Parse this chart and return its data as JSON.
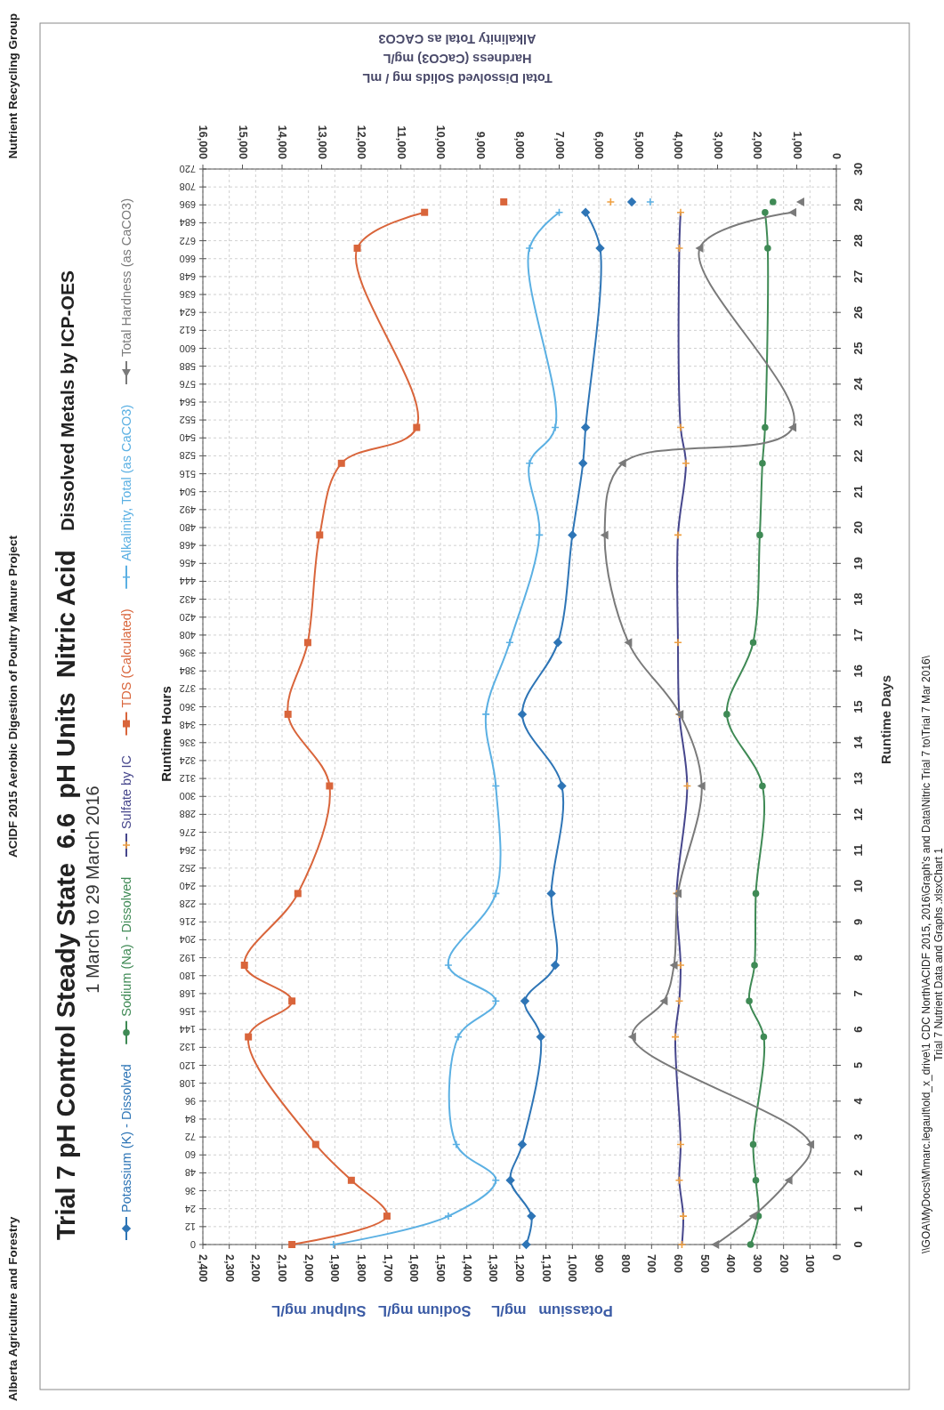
{
  "chart_data": {
    "type": "line",
    "title": "Trial 7 pH Control Steady State  6.6  pH Units  Nitric Acid",
    "subtitle": "1 March to 29 March 2016",
    "xlabel": "Potassium   mg/L     Sodium mg/L   Sulphur mg/L",
    "x2label": "Total Dissolved Solids mg / mL\nHardness (CaCO3) mg/L\nAlkalinity Total as CACO3",
    "ylabel": "Runtime Hours",
    "y2label": "Runtime Days",
    "annotations": [
      "Alberta Agriculture and Forestry",
      "ACIDF 2015 Aerobic Digestion of Poultry Manure Project",
      "Nutrient Recycling Group",
      "Dissolved Metals by ICP-OES",
      "\\\\GOA\\MyDocs\\M\\marc.legault\\old_x_drive\\1 CDC North\\ACIDF 2015, 2016\\Graph's and Data\\Nitric Trial 7 to\\Trial 7 Mar 2016\\",
      "Trial 7 Nutrient Data and Graphs .xlsxChart 1"
    ],
    "xlim": [
      2400,
      0
    ],
    "xticks": [
      0,
      100,
      200,
      300,
      400,
      500,
      600,
      700,
      800,
      900,
      {
        "value": 1000,
        "label": "1,000"
      },
      {
        "value": 1100,
        "label": "1,100"
      },
      {
        "value": 1200,
        "label": "1,200"
      },
      {
        "value": 1300,
        "label": "1,300"
      },
      {
        "value": 1400,
        "label": "1,400"
      },
      {
        "value": 1500,
        "label": "1,500"
      },
      {
        "value": 1600,
        "label": "1,600"
      },
      {
        "value": 1700,
        "label": "1,700"
      },
      {
        "value": 1800,
        "label": "1,800"
      },
      {
        "value": 1900,
        "label": "1,900"
      },
      {
        "value": 2000,
        "label": "2,000"
      },
      {
        "value": 2100,
        "label": "2,100"
      },
      {
        "value": 2200,
        "label": "2,200"
      },
      {
        "value": 2300,
        "label": "2,300"
      },
      {
        "value": 2400,
        "label": "2,400"
      }
    ],
    "x2lim": [
      16000,
      0
    ],
    "x2ticks": [
      0,
      {
        "value": 1000,
        "label": "1,000"
      },
      {
        "value": 2000,
        "label": "2,000"
      },
      {
        "value": 3000,
        "label": "3,000"
      },
      {
        "value": 4000,
        "label": "4,000"
      },
      {
        "value": 5000,
        "label": "5,000"
      },
      {
        "value": 6000,
        "label": "6,000"
      },
      {
        "value": 7000,
        "label": "7,000"
      },
      {
        "value": 8000,
        "label": "8,000"
      },
      {
        "value": 9000,
        "label": "9,000"
      },
      {
        "value": 10000,
        "label": "10,000"
      },
      {
        "value": 11000,
        "label": "11,000"
      },
      {
        "value": 12000,
        "label": "12,000"
      },
      {
        "value": 13000,
        "label": "13,000"
      },
      {
        "value": 14000,
        "label": "14,000"
      },
      {
        "value": 15000,
        "label": "15,000"
      },
      {
        "value": 16000,
        "label": "16,000"
      }
    ],
    "ylim": [
      0,
      720
    ],
    "yticks": [
      0,
      12,
      24,
      36,
      48,
      60,
      72,
      84,
      96,
      108,
      120,
      132,
      144,
      156,
      168,
      180,
      192,
      204,
      216,
      228,
      240,
      252,
      264,
      276,
      288,
      300,
      312,
      324,
      336,
      348,
      360,
      372,
      384,
      396,
      408,
      420,
      432,
      444,
      456,
      468,
      480,
      492,
      504,
      516,
      528,
      540,
      552,
      564,
      576,
      588,
      600,
      612,
      624,
      636,
      648,
      660,
      672,
      684,
      696,
      708,
      720
    ],
    "y2lim": [
      0,
      30
    ],
    "y2ticks": [
      0,
      1,
      2,
      3,
      4,
      5,
      6,
      7,
      8,
      9,
      10,
      11,
      12,
      13,
      14,
      15,
      16,
      17,
      18,
      19,
      20,
      21,
      22,
      23,
      24,
      25,
      26,
      27,
      28,
      29,
      30
    ],
    "grid": true,
    "legend": "left",
    "series": [
      {
        "name": "Potassium (K) - Dissolved",
        "color": "#2e75b6",
        "marker": "diamond",
        "x": [
          1175,
          1155,
          1235,
          1190,
          1120,
          1180,
          1065,
          1080,
          1040,
          1190,
          1055,
          1000,
          960,
          950,
          895,
          950
        ],
        "values": [
          0,
          19,
          43,
          67,
          139,
          163,
          187,
          235,
          307,
          355,
          403,
          475,
          523,
          547,
          667,
          691
        ]
      },
      {
        "name": "Sodium (Na) - Dissolved",
        "color": "#3f8a55",
        "marker": "circle",
        "x": [
          325,
          295,
          305,
          315,
          275,
          330,
          310,
          305,
          280,
          415,
          315,
          290,
          280,
          270,
          260,
          270
        ],
        "values": [
          0,
          19,
          43,
          67,
          139,
          163,
          187,
          235,
          307,
          355,
          403,
          475,
          523,
          547,
          667,
          691
        ]
      },
      {
        "name": "Sulfate by IC",
        "color": "#46468c",
        "marker": "cross",
        "colors": [
          "#f0a040",
          "#f0a040",
          "#f0a040",
          "#f0a040",
          "#f0a040",
          "#f0a040",
          "#f0a040",
          "#f0a040",
          "#f0a040",
          "#f0a040",
          "#f0a040",
          "#f0a040",
          "#f0a040",
          "#f0a040",
          "#f0a040",
          "#f0a040"
        ],
        "x": [
          585,
          580,
          595,
          590,
          610,
          595,
          590,
          605,
          565,
          595,
          600,
          600,
          570,
          590,
          595,
          590
        ],
        "values": [
          0,
          19,
          43,
          67,
          139,
          163,
          187,
          235,
          307,
          355,
          403,
          475,
          523,
          547,
          667,
          691
        ]
      },
      {
        "name": "TDS (Calculated)",
        "color": "#d9653b",
        "marker": "square",
        "axis": "x2",
        "x": [
          13750,
          11350,
          12250,
          13150,
          14850,
          13750,
          14950,
          13600,
          12800,
          13850,
          13350,
          13050,
          12500,
          10600,
          12100,
          10400
        ],
        "values": [
          0,
          19,
          43,
          67,
          139,
          163,
          187,
          235,
          307,
          355,
          403,
          475,
          523,
          547,
          667,
          691
        ]
      },
      {
        "name": "Alkalinity, Total (as CaCO3)",
        "color": "#5bb0e3",
        "marker": "cross",
        "axis": "x2",
        "x": [
          12700,
          9800,
          8600,
          9600,
          9550,
          8600,
          9800,
          8600,
          8600,
          8850,
          8250,
          7500,
          7750,
          7100,
          7750,
          7000
        ],
        "values": [
          0,
          19,
          43,
          67,
          139,
          163,
          187,
          235,
          307,
          355,
          403,
          475,
          523,
          547,
          667,
          691
        ]
      },
      {
        "name": "Total Hardness (as CaCO3)",
        "color": "#7a7a7a",
        "marker": "triangle",
        "axis": "x2",
        "x": [
          3050,
          2100,
          1200,
          650,
          5150,
          4350,
          4100,
          4000,
          3400,
          3950,
          5250,
          5850,
          5400,
          1100,
          3450,
          1100
        ],
        "values": [
          0,
          19,
          43,
          67,
          139,
          163,
          187,
          235,
          307,
          355,
          403,
          475,
          523,
          547,
          667,
          691
        ]
      },
      {
        "type": "scatter",
        "color": "#2e75b6",
        "marker": "diamond",
        "x": [
          775
        ],
        "values": [
          698
        ]
      },
      {
        "type": "scatter",
        "color": "#3f8a55",
        "marker": "circle",
        "x": [
          240
        ],
        "values": [
          698
        ]
      },
      {
        "type": "scatter",
        "color": "#f0a040",
        "marker": "cross",
        "x": [
          855
        ],
        "values": [
          698
        ]
      },
      {
        "type": "scatter",
        "color": "#d9653b",
        "marker": "square",
        "axis": "x2",
        "x": [
          8400
        ],
        "values": [
          698
        ]
      },
      {
        "type": "scatter",
        "color": "#5bb0e3",
        "marker": "cross",
        "axis": "x2",
        "x": [
          4700
        ],
        "values": [
          698
        ]
      },
      {
        "type": "scatter",
        "color": "#7a7a7a",
        "marker": "triangle",
        "axis": "x2",
        "x": [
          900
        ],
        "values": [
          698
        ]
      }
    ]
  }
}
